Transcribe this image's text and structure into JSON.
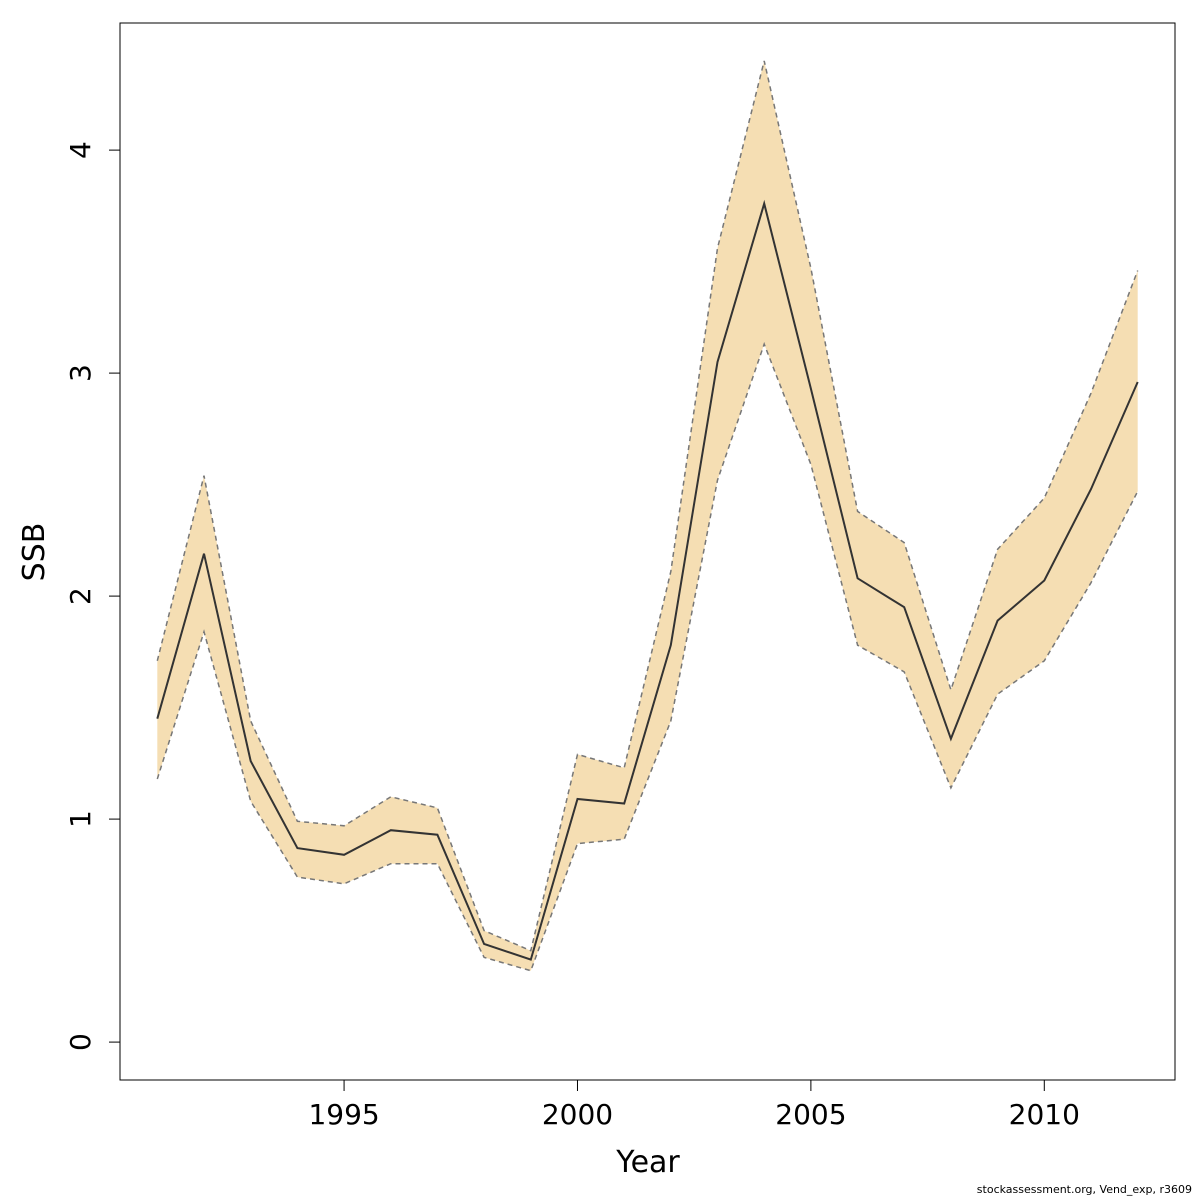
{
  "chart_data": {
    "type": "area",
    "xlabel": "Year",
    "ylabel": "SSB",
    "xlim": [
      1990.2,
      2012.8
    ],
    "ylim": [
      -0.17,
      4.57
    ],
    "x_ticks": [
      1995,
      2000,
      2005,
      2010
    ],
    "y_ticks": [
      0,
      1,
      2,
      3,
      4
    ],
    "grid": false,
    "band_color": "#f5deb3",
    "line_color": "#333333",
    "bound_color": "#777777",
    "series": [
      {
        "x": [
          1991,
          1992,
          1993,
          1994,
          1995,
          1996,
          1997,
          1998,
          1999,
          2000,
          2001,
          2002,
          2003,
          2004,
          2005,
          2006,
          2007,
          2008,
          2009,
          2010,
          2011,
          2012
        ],
        "estimate": [
          1.45,
          2.19,
          1.26,
          0.87,
          0.84,
          0.95,
          0.93,
          0.44,
          0.37,
          1.09,
          1.07,
          1.78,
          3.05,
          3.76,
          2.93,
          2.08,
          1.95,
          1.36,
          1.89,
          2.07,
          2.48,
          2.96
        ],
        "upper": [
          1.71,
          2.54,
          1.44,
          0.99,
          0.97,
          1.1,
          1.05,
          0.5,
          0.41,
          1.29,
          1.23,
          2.11,
          3.56,
          4.4,
          3.47,
          2.38,
          2.24,
          1.58,
          2.21,
          2.44,
          2.91,
          3.46
        ],
        "lower": [
          1.18,
          1.84,
          1.08,
          0.74,
          0.71,
          0.8,
          0.8,
          0.38,
          0.32,
          0.89,
          0.91,
          1.44,
          2.52,
          3.13,
          2.59,
          1.78,
          1.66,
          1.14,
          1.56,
          1.71,
          2.06,
          2.47
        ]
      }
    ]
  },
  "footer": {
    "note": "stockassessment.org, Vend_exp, r3609"
  }
}
